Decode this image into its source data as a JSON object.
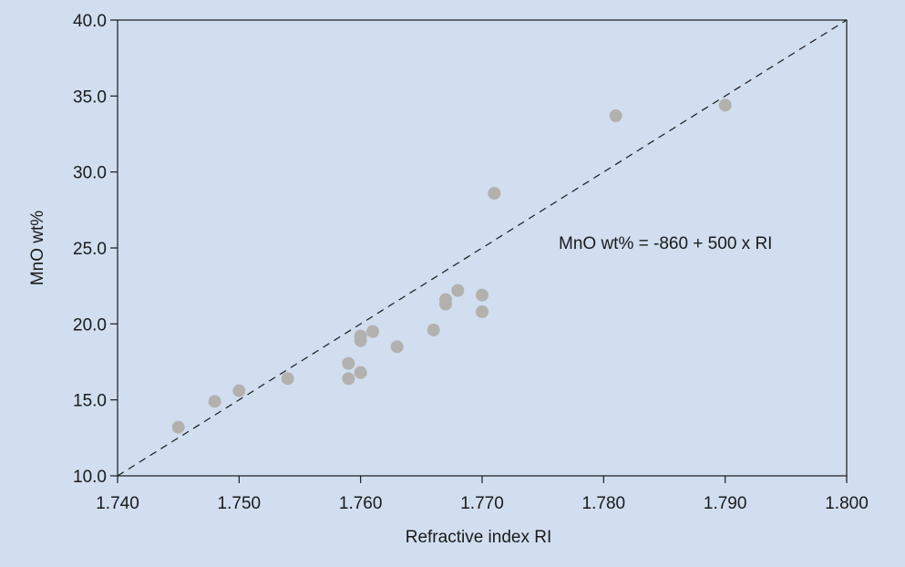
{
  "colors": {
    "figure_background": "#d0def0",
    "plot_background": "#d0def0",
    "axis": "#1a1a1a",
    "points": "#b3b1ae",
    "fit_line": "#1a1a1a"
  },
  "chart_data": {
    "type": "scatter",
    "title": "",
    "xlabel": "Refractive index RI",
    "ylabel": "MnO wt%",
    "xlim": [
      1.74,
      1.8
    ],
    "ylim": [
      10.0,
      40.0
    ],
    "xticks": [
      "1.740",
      "1.750",
      "1.760",
      "1.770",
      "1.780",
      "1.790",
      "1.800"
    ],
    "yticks": [
      "10.0",
      "15.0",
      "20.0",
      "25.0",
      "30.0",
      "35.0",
      "40.0"
    ],
    "grid": false,
    "legend": "none",
    "points": [
      {
        "x": 1.745,
        "y": 13.2
      },
      {
        "x": 1.748,
        "y": 14.9
      },
      {
        "x": 1.75,
        "y": 15.6
      },
      {
        "x": 1.754,
        "y": 16.4
      },
      {
        "x": 1.759,
        "y": 17.4
      },
      {
        "x": 1.759,
        "y": 16.4
      },
      {
        "x": 1.76,
        "y": 16.8
      },
      {
        "x": 1.76,
        "y": 19.2
      },
      {
        "x": 1.76,
        "y": 18.9
      },
      {
        "x": 1.761,
        "y": 19.5
      },
      {
        "x": 1.763,
        "y": 18.5
      },
      {
        "x": 1.766,
        "y": 19.6
      },
      {
        "x": 1.767,
        "y": 21.6
      },
      {
        "x": 1.767,
        "y": 21.3
      },
      {
        "x": 1.768,
        "y": 22.2
      },
      {
        "x": 1.77,
        "y": 21.9
      },
      {
        "x": 1.77,
        "y": 20.8
      },
      {
        "x": 1.771,
        "y": 28.6
      },
      {
        "x": 1.781,
        "y": 33.7
      },
      {
        "x": 1.79,
        "y": 34.4
      }
    ],
    "fit_line": {
      "intercept": -860,
      "slope": 500,
      "x": [
        1.74,
        1.8
      ],
      "style": "dashed"
    },
    "annotation": "MnO wt% = -860 + 500 x RI"
  }
}
